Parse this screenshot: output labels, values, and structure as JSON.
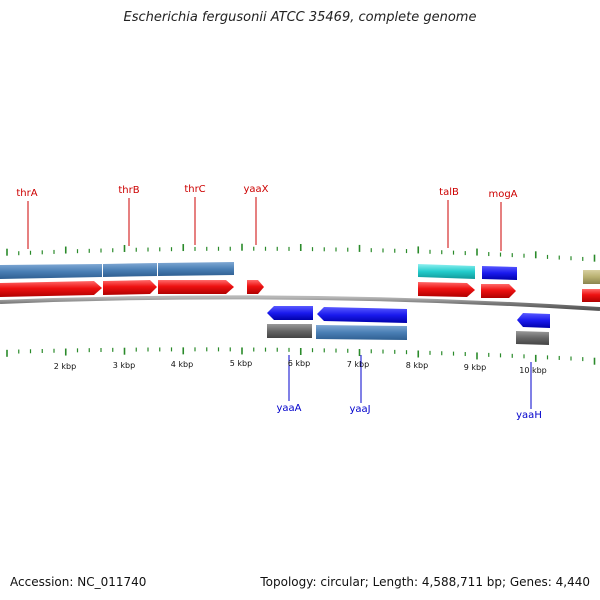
{
  "title": "Escherichia fergusonii ATCC 35469, complete genome",
  "footer": {
    "accession": "Accession: NC_011740",
    "summary": "Topology: circular; Length: 4,588,711 bp; Genes: 4,440"
  },
  "colors": {
    "forward_cds": "#ee1111",
    "forward_feature": "#4a7fb5",
    "reverse_cds": "#1a1aee",
    "reverse_feature": "#666666",
    "cyan_feature": "#22cccc",
    "olive_feature": "#b8b070",
    "tick": "#2a8a2a",
    "backbone": "#808080"
  },
  "kbp_labels": [
    "2 kbp",
    "3 kbp",
    "4 kbp",
    "5 kbp",
    "6 kbp",
    "7 kbp",
    "8 kbp",
    "9 kbp",
    "10 kbp"
  ],
  "top_genes": [
    "thrA",
    "thrB",
    "thrC",
    "yaaX",
    "talB",
    "mogA"
  ],
  "bottom_genes": [
    "yaaA",
    "yaaJ",
    "yaaH"
  ]
}
